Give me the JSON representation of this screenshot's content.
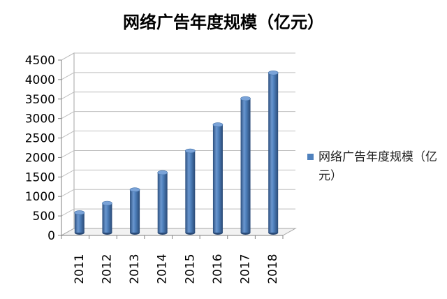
{
  "chart_data": {
    "type": "bar",
    "title": "网络广告年度规模（亿元）",
    "categories": [
      "2011",
      "2012",
      "2013",
      "2014",
      "2015",
      "2016",
      "2017",
      "2018"
    ],
    "series": [
      {
        "name": "网络广告年度规模（亿元）",
        "values": [
          512,
          753,
          1100,
          1540,
          2097,
          2770,
          3440,
          4100
        ],
        "color": "#4f81bd"
      }
    ],
    "yticks": [
      "0",
      "500",
      "1000",
      "1500",
      "2000",
      "2500",
      "3000",
      "3500",
      "4000",
      "4500"
    ],
    "ylim": [
      0,
      4500
    ],
    "grid": true,
    "legend_position": "right",
    "bar_style": "3d-cylinder"
  }
}
